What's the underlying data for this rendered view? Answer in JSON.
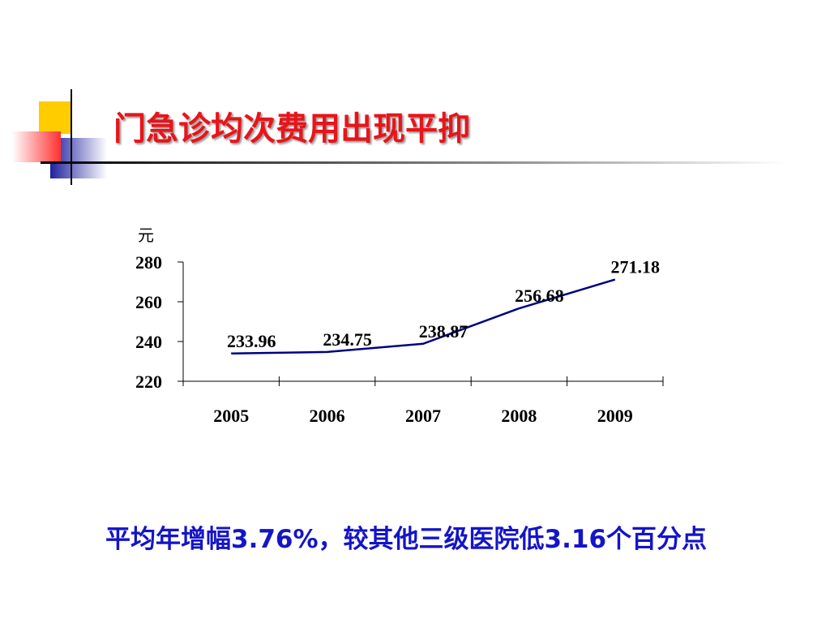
{
  "chart_data": {
    "type": "line",
    "title": "门急诊均次费用出现平抑",
    "y_label": "元",
    "categories": [
      "2005",
      "2006",
      "2007",
      "2008",
      "2009"
    ],
    "series": [
      {
        "color": "#000080",
        "values": [
          233.96,
          234.75,
          238.87,
          256.68,
          271.18
        ]
      }
    ],
    "ylim": [
      220,
      280
    ],
    "yticks": [
      220,
      240,
      260,
      280
    ],
    "annotation": "平均年增幅3.76%，较其他三级医院低3.16个百分点"
  }
}
